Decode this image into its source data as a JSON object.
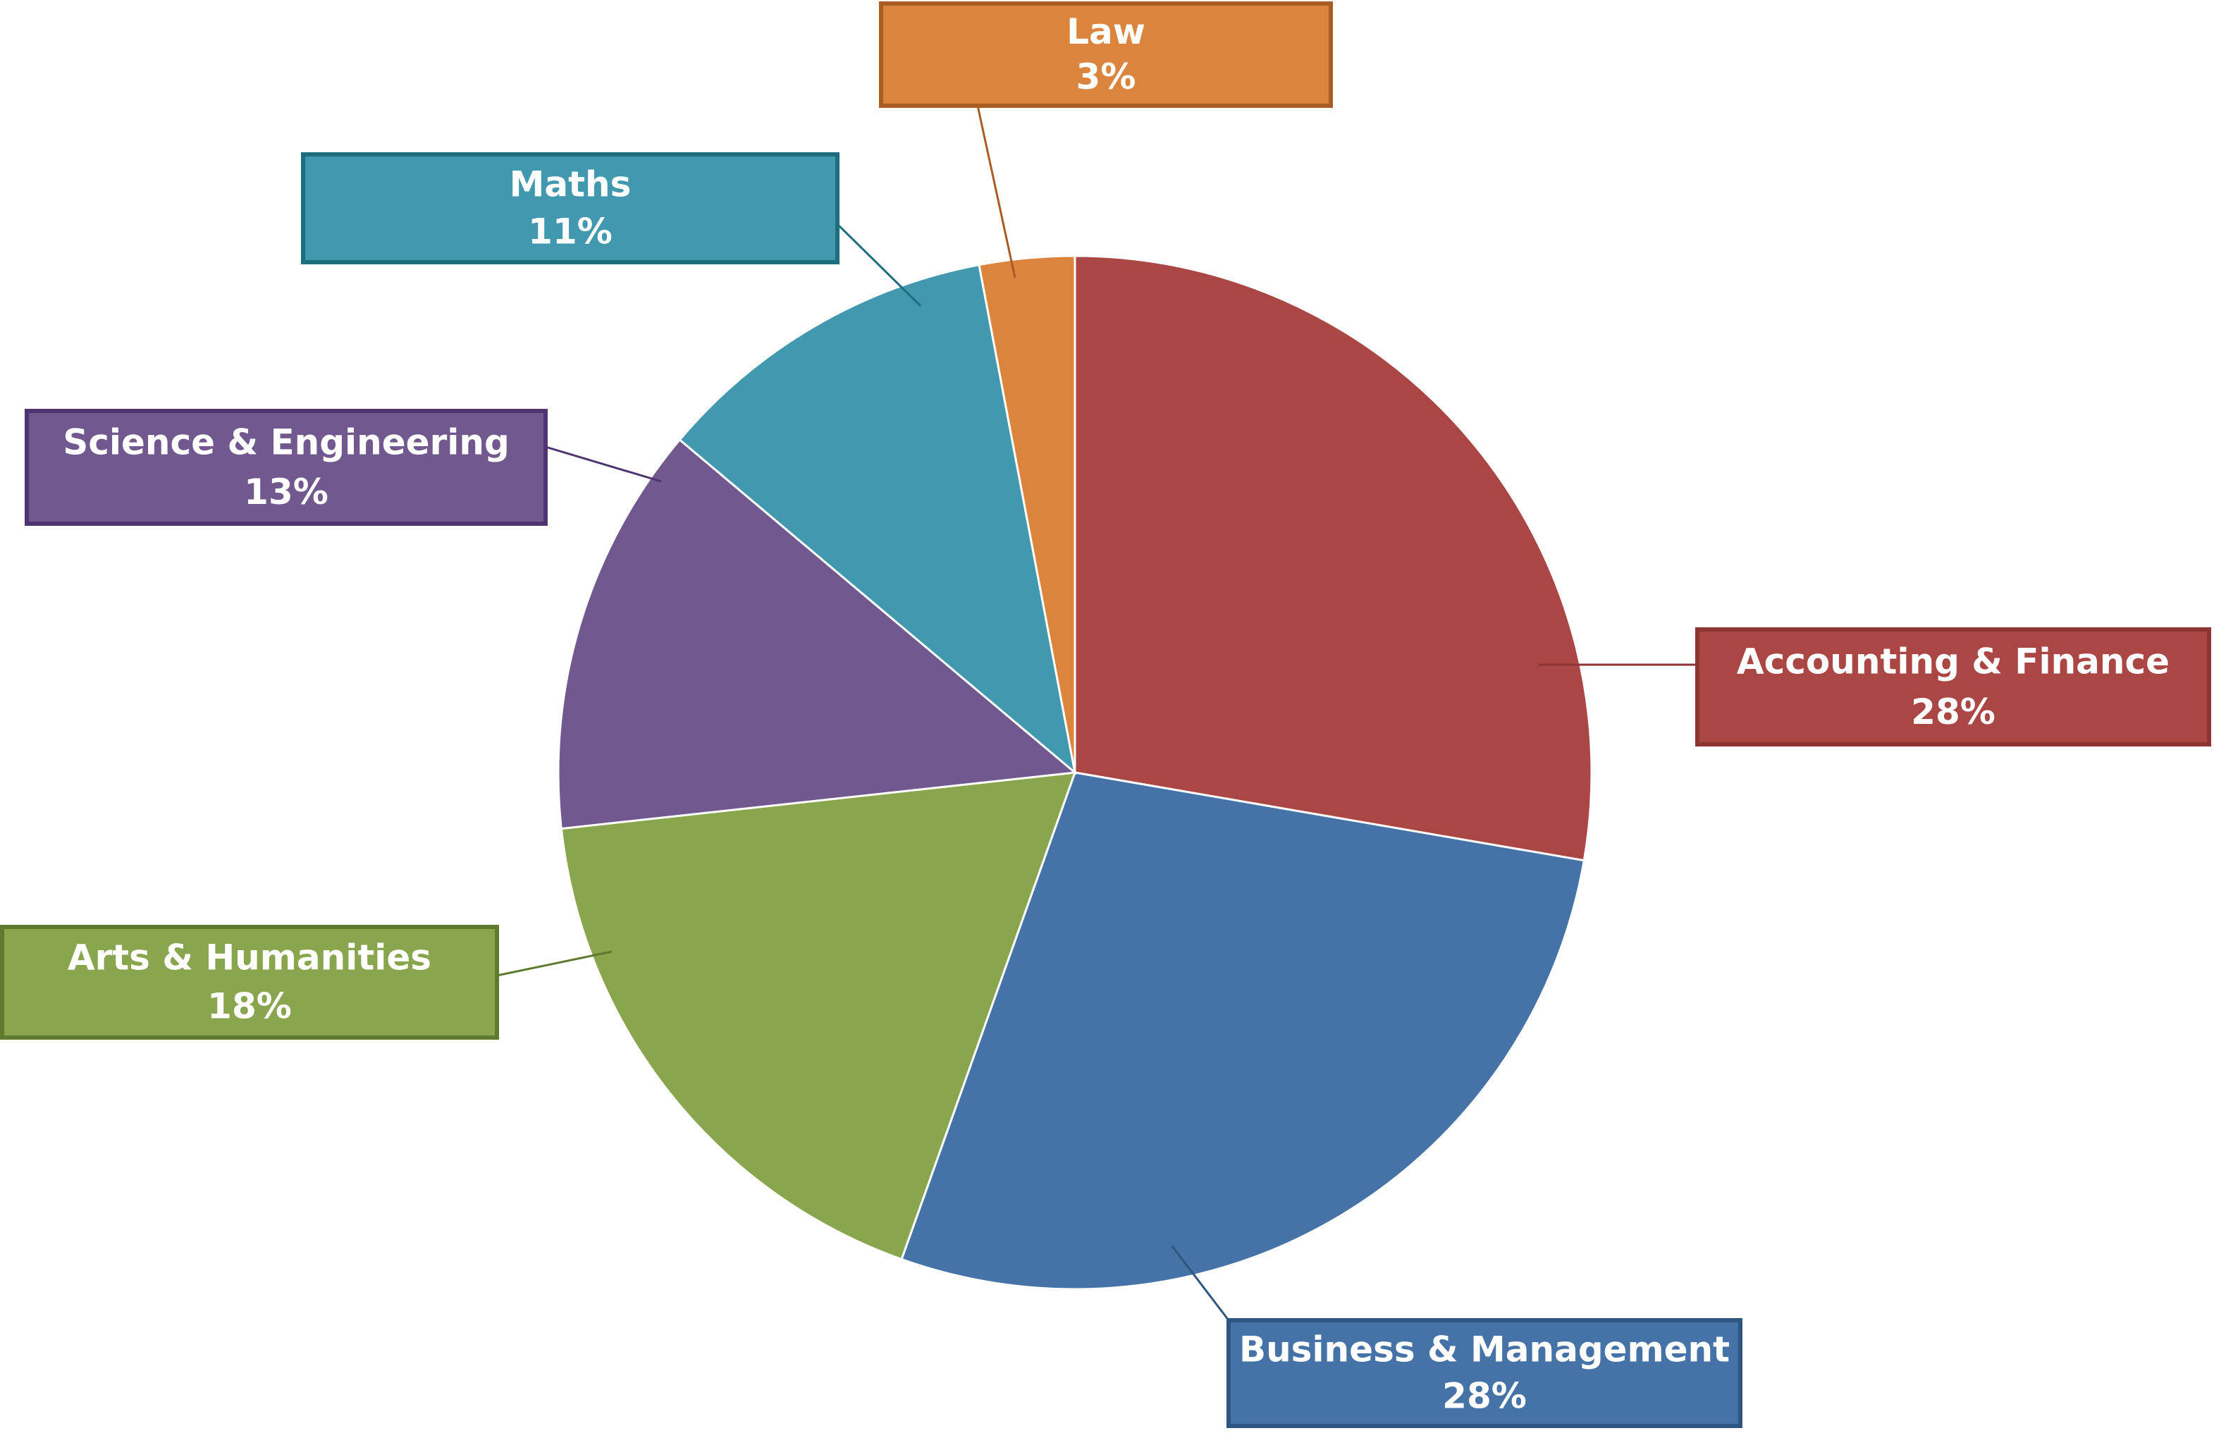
{
  "chart_data": {
    "type": "pie",
    "title": "",
    "start_angle_deg": 0,
    "direction": "clockwise",
    "slices": [
      {
        "name": "Accounting & Finance",
        "value": 28,
        "label": "28%",
        "color": "#AA4643",
        "border": "#8E3432"
      },
      {
        "name": "Business & Management",
        "value": 28,
        "label": "28%",
        "color": "#4572A7",
        "border": "#2E5680"
      },
      {
        "name": "Arts & Humanities",
        "value": 18,
        "label": "18%",
        "color": "#89A54E",
        "border": "#5E7A2E"
      },
      {
        "name": "Science & Engineering",
        "value": 13,
        "label": "13%",
        "color": "#71588F",
        "border": "#4E3470"
      },
      {
        "name": "Maths",
        "value": 11,
        "label": "11%",
        "color": "#4198AF",
        "border": "#1F6E7E"
      },
      {
        "name": "Law",
        "value": 3,
        "label": "3%",
        "color": "#DB843D",
        "border": "#A95C24"
      }
    ]
  }
}
